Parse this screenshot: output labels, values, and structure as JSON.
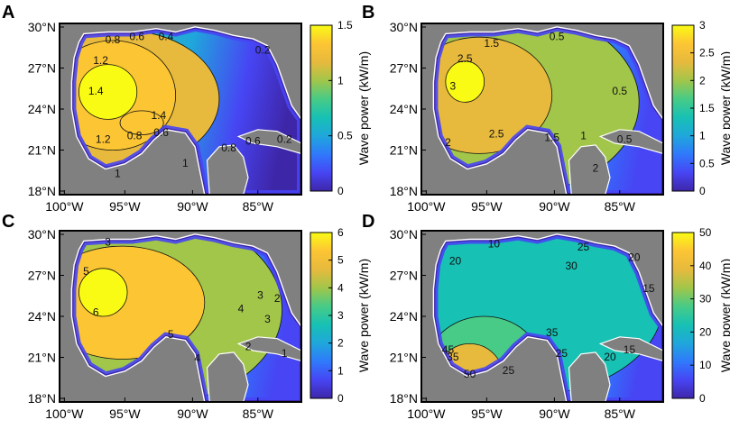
{
  "figure": {
    "x_ticks": [
      "100°W",
      "95°W",
      "90°W",
      "85°W"
    ],
    "y_ticks": [
      "30°N",
      "27°N",
      "24°N",
      "21°N",
      "18°N"
    ],
    "colorbar_label": "Wave power  (kW/m)",
    "colormap": [
      "#3e26a8",
      "#4745f4",
      "#2f79fb",
      "#1fa7db",
      "#17c1b4",
      "#48cb86",
      "#a2c64a",
      "#e7ba3d",
      "#fcc534",
      "#f9fb15"
    ]
  },
  "panels": [
    {
      "letter": "A",
      "colorbar_ticks": [
        "1.5",
        "1",
        "0.5",
        "0"
      ],
      "contour_labels": [
        "0.8",
        "0.6",
        "0.4",
        "0.2",
        "1.2",
        "1.4",
        "1.4",
        "1.2",
        "0.8",
        "0.6",
        "1",
        "0.8",
        "0.6",
        "1",
        "0.2"
      ]
    },
    {
      "letter": "B",
      "colorbar_ticks": [
        "3",
        "2.5",
        "2",
        "1.5",
        "1",
        "0.5",
        "0"
      ],
      "contour_labels": [
        "1.5",
        "0.5",
        "2.5",
        "3",
        "0.5",
        "2.5",
        "2",
        "1.5",
        "1",
        "0.5",
        "2"
      ]
    },
    {
      "letter": "C",
      "colorbar_ticks": [
        "6",
        "5",
        "4",
        "3",
        "2",
        "1",
        "0"
      ],
      "contour_labels": [
        "3",
        "5",
        "6",
        "4",
        "5",
        "4",
        "3",
        "2",
        "3",
        "2",
        "1"
      ]
    },
    {
      "letter": "D",
      "colorbar_ticks": [
        "50",
        "40",
        "30",
        "20",
        "10",
        "0"
      ],
      "contour_labels": [
        "10",
        "25",
        "20",
        "30",
        "20",
        "15",
        "35",
        "25",
        "20",
        "15",
        "50",
        "45",
        "35",
        "25"
      ]
    }
  ]
}
